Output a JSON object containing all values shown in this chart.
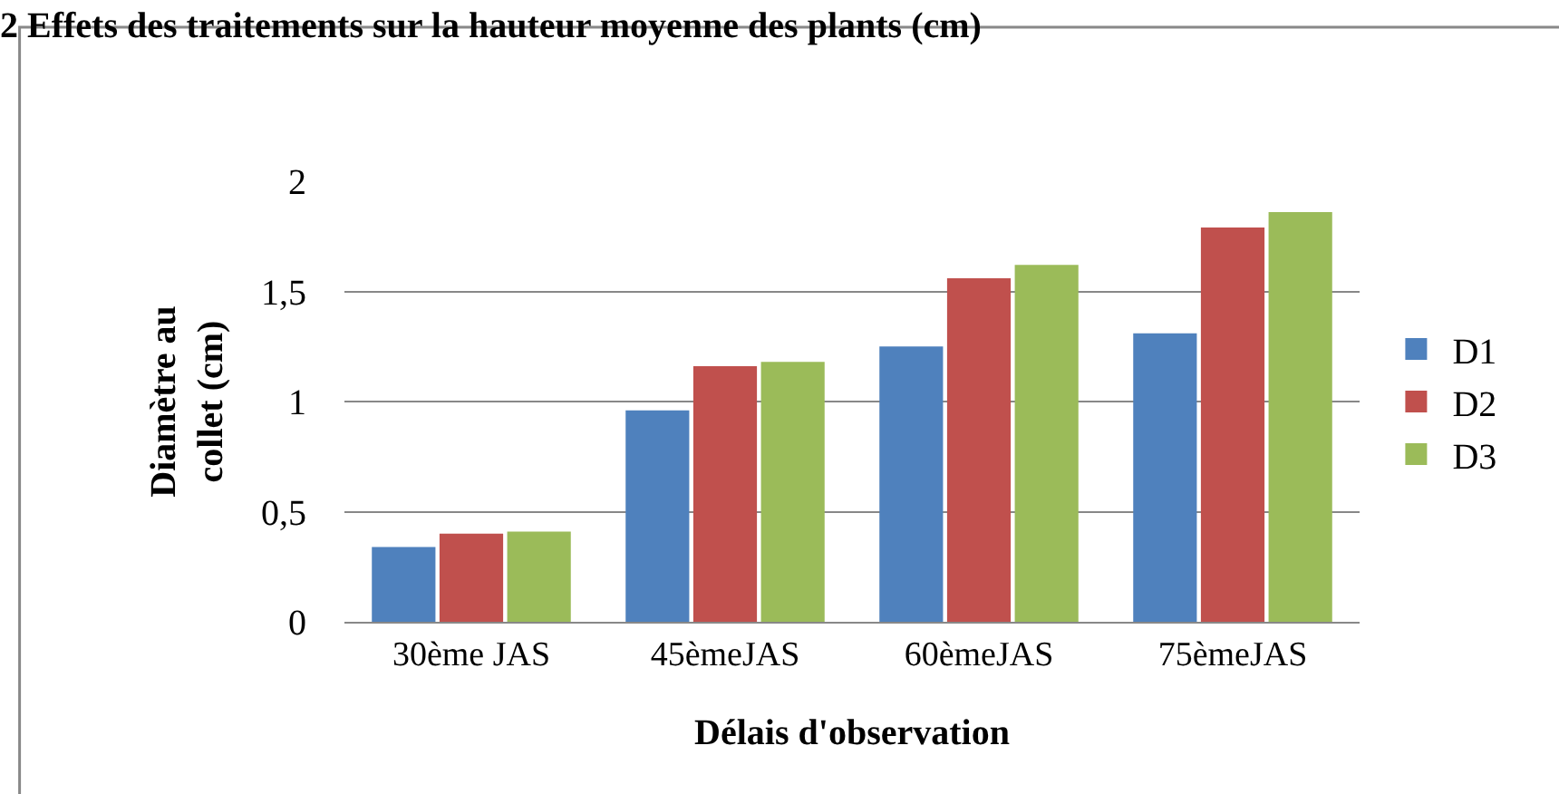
{
  "chart_data": {
    "type": "bar",
    "title": "2 Effets des traitements sur la hauteur moyenne des plants (cm)",
    "xlabel": "Délais d'observation",
    "ylabel": "Diamètre au collet (cm)",
    "categories": [
      "30ème JAS",
      "45èmeJAS",
      "60èmeJAS",
      "75èmeJAS"
    ],
    "series": [
      {
        "name": "D1",
        "color": "#4f81bd",
        "values": [
          0.34,
          0.96,
          1.25,
          1.31
        ]
      },
      {
        "name": "D2",
        "color": "#c0504d",
        "values": [
          0.4,
          1.16,
          1.56,
          1.79
        ]
      },
      {
        "name": "D3",
        "color": "#9bbb59",
        "values": [
          0.41,
          1.18,
          1.62,
          1.86
        ]
      }
    ],
    "ylim": [
      0,
      2
    ],
    "yticks": [
      {
        "value": 0,
        "label": "0"
      },
      {
        "value": 0.5,
        "label": "0,5"
      },
      {
        "value": 1,
        "label": "1"
      },
      {
        "value": 1.5,
        "label": "1,5"
      },
      {
        "value": 2,
        "label": "2"
      }
    ],
    "grid": "y",
    "legend": "right"
  }
}
